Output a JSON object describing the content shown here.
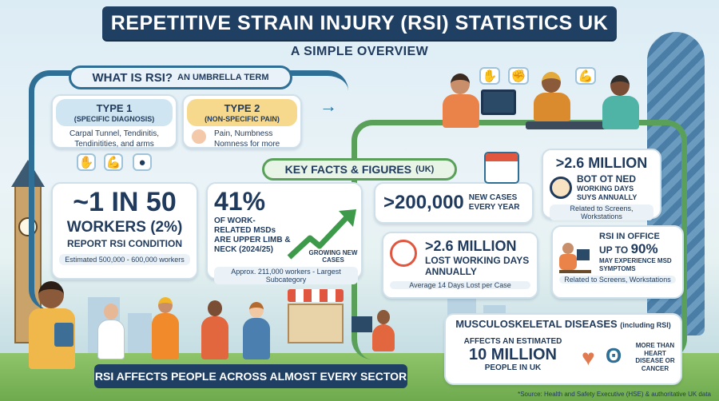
{
  "header": {
    "title": "REPETITIVE STRAIN INJURY (RSI) STATISTICS UK",
    "subtitle": "A SIMPLE OVERVIEW"
  },
  "what_is": {
    "label": "WHAT IS RSI?",
    "sublabel": "AN UMBRELLA TERM",
    "type1": {
      "title": "TYPE 1",
      "subtitle": "(SPECIFIC DIAGNOSIS)",
      "text": "Carpal Tunnel, Tendinitis, Tendinitities, and arms"
    },
    "type2": {
      "title": "TYPE 2",
      "subtitle": "(NON-SPECIFIC PAIN)",
      "text": "Pain, Numbness Nomness for more"
    },
    "icons": [
      "hand-icon",
      "elbow-icon",
      "neck-icon"
    ]
  },
  "key_facts": {
    "label": "KEY FACTS & FIGURES",
    "suffix": "(UK)"
  },
  "stat_1in50": {
    "line1": "~1 IN 50",
    "line2": "WORKERS (2%)",
    "line3": "REPORT RSI CONDITION",
    "note": "Estimated 500,000 - 600,000 workers"
  },
  "stat_41": {
    "value": "41%",
    "text": "OF WORK-RELATED MSDs ARE UPPER LIMB & NECK (2024/25)",
    "trend_label": "GROWING NEW CASES",
    "note": "Approx. 211,000 workers - Largest Subcategory"
  },
  "stat_200k": {
    "value": ">200,000",
    "text": "NEW CASES EVERY YEAR"
  },
  "stat_26m_top": {
    "value": ">2.6 MILLION",
    "garbled": "BOT OT NED",
    "text": "WORKING DAYS SUYS ANNUALLY",
    "note": "Related to Screens, Workstations"
  },
  "stat_26m_lost": {
    "value": ">2.6 MILLION",
    "text": "LOST WORKING DAYS ANNUALLY",
    "note": "Average 14 Days Lost per Case"
  },
  "stat_office": {
    "line1": "RSI IN OFFICE",
    "line2_prefix": "UP TO",
    "line2_value": "90%",
    "text": "MAY EXPERIENCE MSD SYMPTOMS",
    "note": "Related to Screens, Workstations"
  },
  "msd": {
    "heading": "MUSCULOSKELETAL DISEASES",
    "heading_suffix": "(including RSI)",
    "line1": "AFFECTS AN ESTIMATED",
    "value": "10 MILLION",
    "line3": "PEOPLE IN UK",
    "comparison": "MORE THAN HEART DISEASE OR CANCER"
  },
  "sector_banner": "RSI AFFECTS PEOPLE ACROSS ALMOST EVERY SECTOR",
  "source": "*Source: Health and Safety Executive (HSE) & authoritative UK data",
  "colors": {
    "navy": "#1f3f63",
    "ribbon": "#2f6f96",
    "green_ribbon": "#5aa05a",
    "accent_orange": "#e9834a",
    "heart": "#e07a50"
  }
}
